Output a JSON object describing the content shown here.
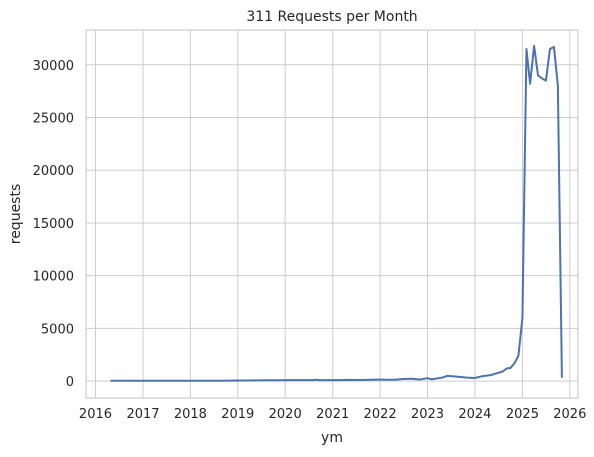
{
  "chart_data": {
    "type": "line",
    "title": "311 Requests per Month",
    "xlabel": "ym",
    "ylabel": "requests",
    "grid": true,
    "legend": "none",
    "line_color": "#4c72b0",
    "grid_color": "#cccccc",
    "frame_color": "#cccccc",
    "xlim": [
      "2015-10-20",
      "2026-03-05"
    ],
    "ylim": [
      -1600,
      33300
    ],
    "xticks": [
      "2016",
      "2017",
      "2018",
      "2019",
      "2020",
      "2021",
      "2022",
      "2023",
      "2024",
      "2025",
      "2026"
    ],
    "yticks": [
      0,
      5000,
      10000,
      15000,
      20000,
      25000,
      30000
    ],
    "ytick_labels": [
      "0",
      "5000",
      "10000",
      "15000",
      "20000",
      "25000",
      "30000"
    ],
    "series": [
      {
        "x": [
          "2016-05-01",
          "2016-08-01",
          "2016-11-01",
          "2017-02-01",
          "2017-05-01",
          "2017-08-01",
          "2017-11-01",
          "2018-02-01",
          "2018-05-01",
          "2018-08-01",
          "2018-11-01",
          "2019-02-01",
          "2019-05-01",
          "2019-08-01",
          "2019-11-01",
          "2020-02-01",
          "2020-05-01",
          "2020-08-01",
          "2020-09-01",
          "2020-10-01",
          "2020-11-01",
          "2021-01-01",
          "2021-03-01",
          "2021-05-01",
          "2021-08-01",
          "2021-11-01",
          "2022-01-01",
          "2022-03-01",
          "2022-05-01",
          "2022-07-01",
          "2022-09-01",
          "2022-11-01",
          "2023-01-01",
          "2023-02-01",
          "2023-03-01",
          "2023-05-01",
          "2023-06-01",
          "2023-07-01",
          "2023-09-01",
          "2023-11-01",
          "2024-01-01",
          "2024-03-01",
          "2024-05-01",
          "2024-07-01",
          "2024-08-01",
          "2024-09-01",
          "2024-10-01",
          "2024-11-01",
          "2024-12-01",
          "2025-01-01",
          "2025-02-01",
          "2025-03-01",
          "2025-04-01",
          "2025-05-01",
          "2025-06-01",
          "2025-07-01",
          "2025-08-01",
          "2025-09-01",
          "2025-10-01",
          "2025-11-01"
        ],
        "values": [
          30,
          30,
          30,
          30,
          40,
          40,
          30,
          40,
          40,
          40,
          50,
          60,
          70,
          80,
          80,
          90,
          100,
          100,
          130,
          80,
          100,
          90,
          100,
          120,
          110,
          130,
          150,
          130,
          140,
          200,
          230,
          150,
          280,
          180,
          230,
          350,
          500,
          470,
          400,
          330,
          300,
          480,
          570,
          800,
          900,
          1200,
          1250,
          1700,
          2400,
          6000,
          31500,
          28200,
          31800,
          29000,
          28700,
          28500,
          31500,
          31700,
          28000,
          400
        ]
      }
    ]
  }
}
